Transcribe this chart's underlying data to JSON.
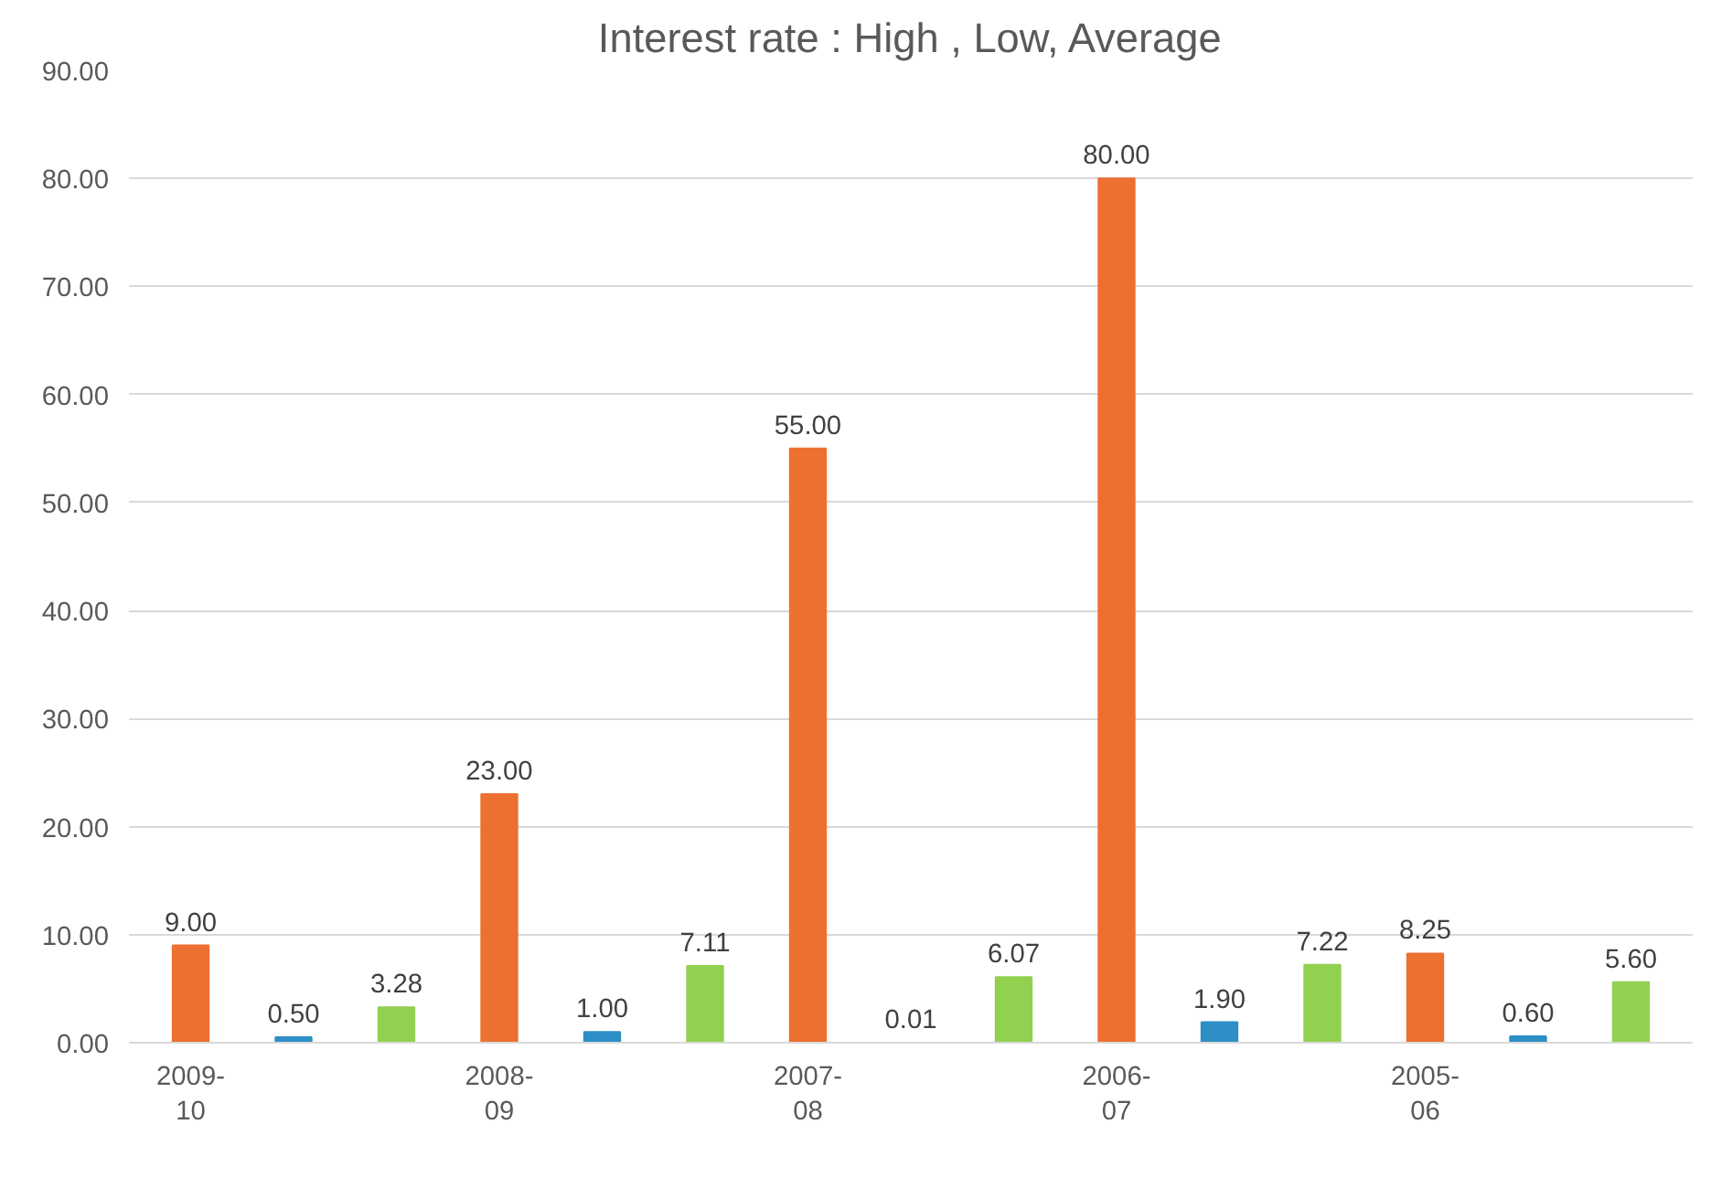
{
  "chart_data": {
    "type": "bar",
    "title": "Interest rate : High , Low, Average",
    "categories": [
      "2009-\n10",
      null,
      null,
      "2008-\n09",
      null,
      null,
      "2007-\n08",
      null,
      null,
      "2006-\n07",
      null,
      null,
      "2005-\n06",
      null,
      null
    ],
    "values": [
      9.0,
      0.5,
      3.28,
      23.0,
      1.0,
      7.11,
      55.0,
      0.01,
      6.07,
      80.0,
      1.9,
      7.22,
      8.25,
      0.6,
      5.6
    ],
    "colors": [
      "#ed7031",
      "#2e8fc6",
      "#92d050",
      "#ed7031",
      "#2e8fc6",
      "#92d050",
      "#ed7031",
      "#2e8fc6",
      "#92d050",
      "#ed7031",
      "#2e8fc6",
      "#92d050",
      "#ed7031",
      "#2e8fc6",
      "#92d050"
    ],
    "value_labels": [
      "9.00",
      "0.50",
      "3.28",
      "23.00",
      "1.00",
      "7.11",
      "55.00",
      "0.01",
      "6.07",
      "80.00",
      "1.90",
      "7.22",
      "8.25",
      "0.60",
      "5.60"
    ],
    "ylim": [
      0,
      90
    ],
    "yticks": [
      {
        "value": 0,
        "label": "0.00"
      },
      {
        "value": 10,
        "label": "10.00"
      },
      {
        "value": 20,
        "label": "20.00"
      },
      {
        "value": 30,
        "label": "30.00"
      },
      {
        "value": 40,
        "label": "40.00"
      },
      {
        "value": 50,
        "label": "50.00"
      },
      {
        "value": 60,
        "label": "60.00"
      },
      {
        "value": 70,
        "label": "70.00"
      },
      {
        "value": 80,
        "label": "80.00"
      },
      {
        "value": 90,
        "label": "90.00"
      }
    ],
    "grid": "y"
  }
}
